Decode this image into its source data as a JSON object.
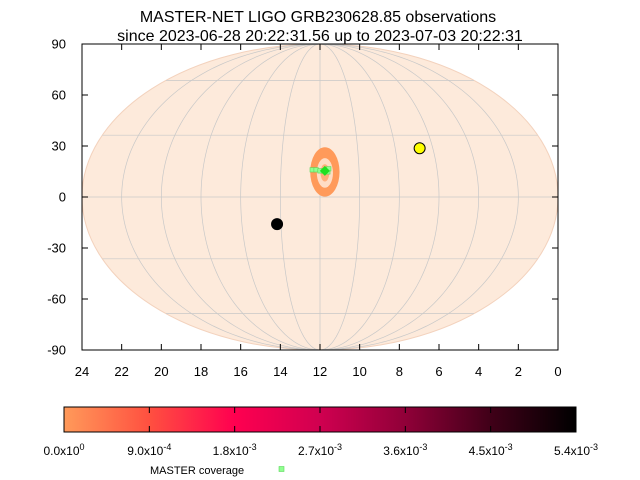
{
  "chart_data": {
    "type": "scatter",
    "projection": "mollweide",
    "title_line1": "MASTER-NET LIGO GRB230628.85 observations",
    "title_line2": "since 2023-06-28 20:22:31.56 up to 2023-07-03 20:22:31",
    "x_tick_labels": [
      "24",
      "22",
      "20",
      "18",
      "16",
      "14",
      "12",
      "10",
      "8",
      "6",
      "4",
      "2",
      "0"
    ],
    "y_tick_labels": [
      "90",
      "60",
      "30",
      "0",
      "-30",
      "-60",
      "-90"
    ],
    "x_ticks": [
      24,
      22,
      20,
      18,
      16,
      14,
      12,
      10,
      8,
      6,
      4,
      2,
      0
    ],
    "y_ticks": [
      90,
      60,
      30,
      0,
      -30,
      -60,
      -90
    ],
    "xlim": [
      24,
      0
    ],
    "ylim": [
      -90,
      90
    ],
    "grid": true,
    "colorbar": {
      "tick_labels": [
        {
          "base": "0.0x10",
          "exp": "0"
        },
        {
          "base": "9.0x10",
          "exp": "-4"
        },
        {
          "base": "1.8x10",
          "exp": "-3"
        },
        {
          "base": "2.7x10",
          "exp": "-3"
        },
        {
          "base": "3.6x10",
          "exp": "-3"
        },
        {
          "base": "4.5x10",
          "exp": "-3"
        },
        {
          "base": "5.4x10",
          "exp": "-3"
        }
      ],
      "values": [
        0,
        0.0009,
        0.0018,
        0.0027,
        0.0036,
        0.0045,
        0.0054
      ],
      "range": [
        0,
        0.0054
      ],
      "colors": [
        "#ff9a5a",
        "#ff5040",
        "#ff0050",
        "#d00050",
        "#900038",
        "#400018",
        "#000000"
      ]
    },
    "legend": [
      {
        "label": "MASTER coverage",
        "color": "#90ff90"
      }
    ],
    "markers": [
      {
        "ra": 14.2,
        "dec": -13,
        "color": "#000000"
      },
      {
        "ra": 6.7,
        "dec": 23.5,
        "color": "#ffff00"
      }
    ],
    "probability_region": {
      "ra": 11.75,
      "dec": 12,
      "ra_halfwidth": 0.75,
      "dec_halfwidth": 12,
      "color": "#ff9a5a"
    },
    "coverage_points": [
      {
        "ra": 12.4,
        "dec": 13
      },
      {
        "ra": 12.2,
        "dec": 13
      },
      {
        "ra": 12.0,
        "dec": 12.5
      },
      {
        "ra": 11.8,
        "dec": 12.5
      },
      {
        "ra": 11.6,
        "dec": 12
      },
      {
        "ra": 11.55,
        "dec": 13.5
      }
    ],
    "sky_background_color": "#fdeadb",
    "grid_color": "#c8c8c8"
  }
}
